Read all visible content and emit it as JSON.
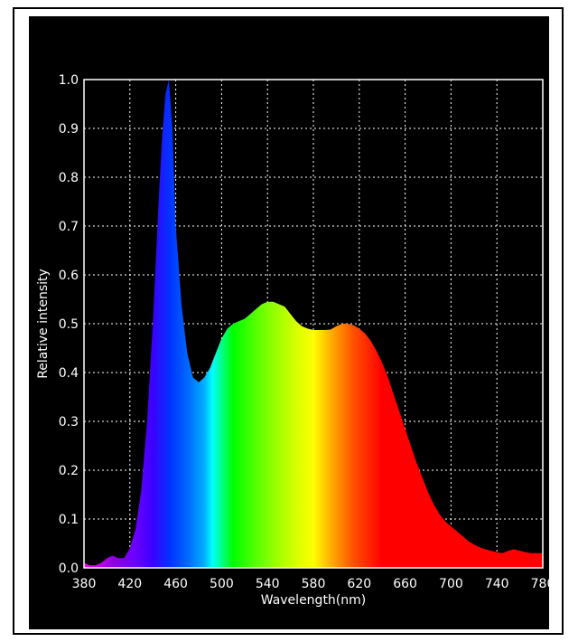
{
  "chart_data": {
    "type": "area",
    "title": "",
    "xlabel": "Wavelength(nm)",
    "ylabel": "Relative intensity",
    "xlim": [
      380,
      780
    ],
    "ylim": [
      0,
      1.0
    ],
    "grid": true,
    "x_ticks": [
      "380",
      "420",
      "460",
      "500",
      "540",
      "580",
      "620",
      "660",
      "700",
      "740",
      "780"
    ],
    "y_ticks": [
      "0.0",
      "0.1",
      "0.2",
      "0.3",
      "0.4",
      "0.5",
      "0.6",
      "0.7",
      "0.8",
      "0.9",
      "1.0"
    ],
    "colors": {
      "background": "#000000",
      "grid": "#ffffff",
      "text": "#ffffff"
    },
    "x": [
      380,
      385,
      390,
      395,
      400,
      405,
      410,
      415,
      420,
      425,
      430,
      435,
      440,
      445,
      448,
      451,
      454,
      457,
      460,
      465,
      470,
      475,
      480,
      485,
      490,
      495,
      500,
      505,
      510,
      515,
      520,
      525,
      530,
      535,
      540,
      545,
      550,
      555,
      560,
      565,
      570,
      575,
      580,
      585,
      590,
      595,
      600,
      605,
      610,
      615,
      620,
      625,
      630,
      635,
      640,
      645,
      650,
      655,
      660,
      665,
      670,
      675,
      680,
      685,
      690,
      695,
      700,
      705,
      710,
      715,
      720,
      725,
      730,
      735,
      740,
      745,
      750,
      755,
      760,
      765,
      770,
      775,
      780
    ],
    "y": [
      0.01,
      0.005,
      0.005,
      0.01,
      0.02,
      0.025,
      0.02,
      0.02,
      0.04,
      0.08,
      0.16,
      0.3,
      0.5,
      0.75,
      0.88,
      0.97,
      1.0,
      0.9,
      0.7,
      0.54,
      0.44,
      0.39,
      0.38,
      0.39,
      0.41,
      0.44,
      0.47,
      0.49,
      0.5,
      0.505,
      0.51,
      0.52,
      0.53,
      0.54,
      0.545,
      0.545,
      0.54,
      0.535,
      0.52,
      0.505,
      0.495,
      0.49,
      0.487,
      0.487,
      0.487,
      0.488,
      0.495,
      0.5,
      0.5,
      0.497,
      0.49,
      0.48,
      0.465,
      0.445,
      0.42,
      0.39,
      0.355,
      0.32,
      0.285,
      0.25,
      0.215,
      0.185,
      0.155,
      0.13,
      0.11,
      0.095,
      0.085,
      0.075,
      0.065,
      0.055,
      0.048,
      0.042,
      0.038,
      0.035,
      0.032,
      0.03,
      0.035,
      0.038,
      0.035,
      0.032,
      0.03,
      0.03,
      0.03
    ]
  }
}
